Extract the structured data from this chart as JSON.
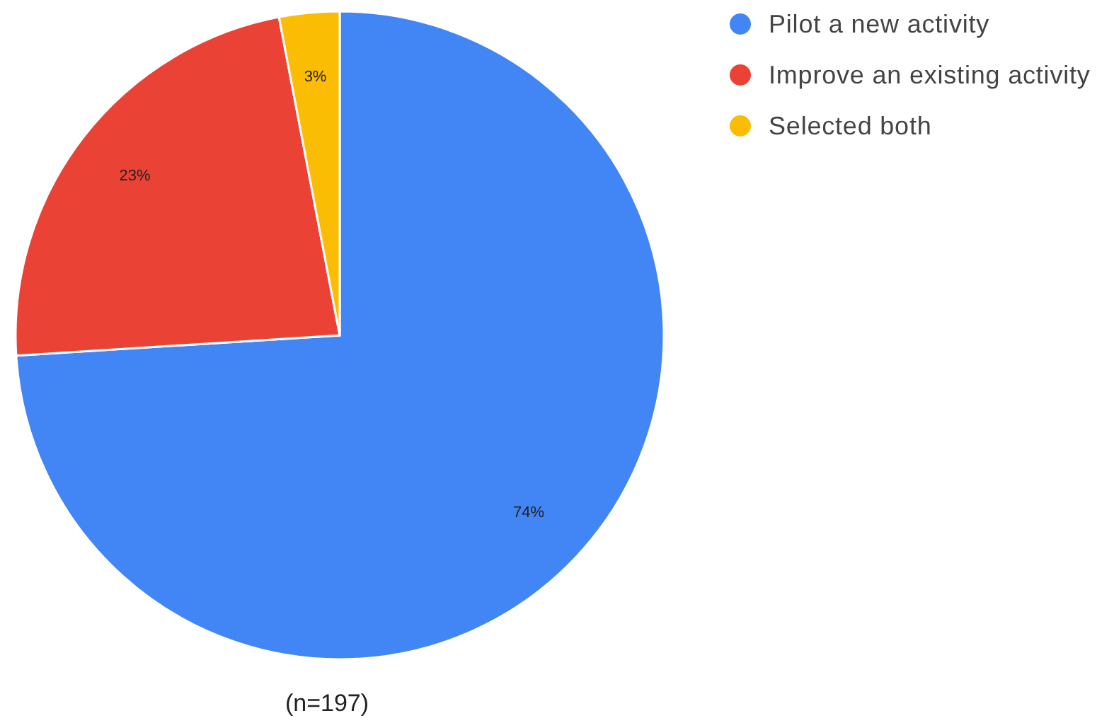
{
  "chart_data": {
    "type": "pie",
    "categories": [
      "Pilot a new activity",
      "Improve an existing activity",
      "Selected both"
    ],
    "values": [
      74,
      23,
      3
    ],
    "colors": [
      "#4285f4",
      "#ea4335",
      "#fbbc04"
    ],
    "value_labels": [
      "74%",
      "23%",
      "3%"
    ],
    "legend": "top right",
    "annotations": [
      "(n=197)"
    ]
  }
}
